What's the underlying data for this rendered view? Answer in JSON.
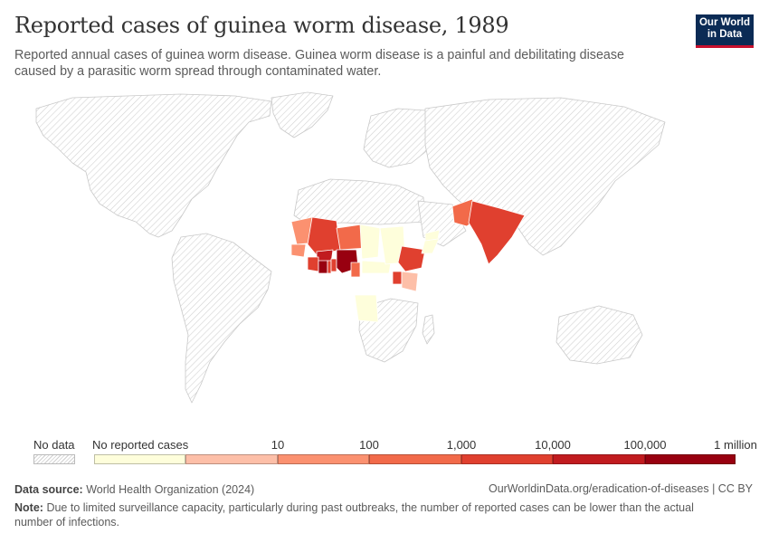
{
  "title": "Reported cases of guinea worm disease, 1989",
  "subtitle": "Reported annual cases of guinea worm disease. Guinea worm disease is a painful and debilitating disease caused by a parasitic worm spread through contaminated water.",
  "logo": {
    "line1": "Our World",
    "line2": "in Data"
  },
  "legend": {
    "no_data_label": "No data",
    "no_cases_label": "No reported cases",
    "ticks": [
      "10",
      "100",
      "1,000",
      "10,000",
      "100,000",
      "1 million"
    ],
    "bin_colors": [
      "#fefedb",
      "#fdbfa8",
      "#fb9170",
      "#f26a4a",
      "#e0402f",
      "#c11b1f",
      "#980010"
    ]
  },
  "colors": {
    "no_data_hatch": "#cfcfcf",
    "land_outline": "#cccccc",
    "logo_background": "#0b2b55",
    "logo_accent": "#c8102e"
  },
  "map_data": {
    "regions": [
      {
        "name": "Mauritania",
        "bin": 2
      },
      {
        "name": "Senegal",
        "bin": 2
      },
      {
        "name": "Mali",
        "bin": 4
      },
      {
        "name": "Burkina Faso",
        "bin": 5
      },
      {
        "name": "Ghana",
        "bin": 6
      },
      {
        "name": "Nigeria",
        "bin": 6
      },
      {
        "name": "Cote d'Ivoire",
        "bin": 4
      },
      {
        "name": "Benin",
        "bin": 4
      },
      {
        "name": "Togo",
        "bin": 4
      },
      {
        "name": "Niger",
        "bin": 3
      },
      {
        "name": "Cameroon",
        "bin": 3
      },
      {
        "name": "Chad",
        "bin": 0
      },
      {
        "name": "Sudan",
        "bin": 0
      },
      {
        "name": "Central African Republic",
        "bin": 0
      },
      {
        "name": "Ethiopia",
        "bin": 4
      },
      {
        "name": "Uganda",
        "bin": 4
      },
      {
        "name": "Kenya",
        "bin": 1
      },
      {
        "name": "Somalia",
        "bin": 0
      },
      {
        "name": "Angola",
        "bin": 0
      },
      {
        "name": "India",
        "bin": 4
      },
      {
        "name": "Pakistan",
        "bin": 3
      },
      {
        "name": "Yemen",
        "bin": 0
      }
    ]
  },
  "footer": {
    "source_label": "Data source:",
    "source_text": "World Health Organization (2024)",
    "url_text": "OurWorldinData.org/eradication-of-diseases | CC BY",
    "note_label": "Note:",
    "note_text": "Due to limited surveillance capacity, particularly during past outbreaks, the number of reported cases can be lower than the actual number of infections."
  }
}
